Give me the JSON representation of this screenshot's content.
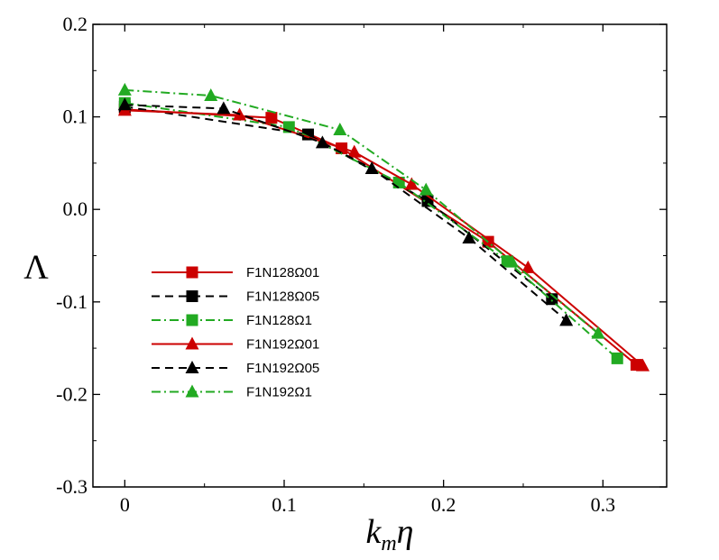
{
  "chart_data": {
    "type": "line",
    "xlabel": {
      "main": "k",
      "sub": "m",
      "tail": "η"
    },
    "ylabel": "Λ",
    "xlim": [
      -0.02,
      0.34
    ],
    "ylim": [
      -0.3,
      0.2
    ],
    "xticks": [
      0,
      0.1,
      0.2,
      0.3
    ],
    "xtick_labels": [
      "0",
      "0.1",
      "0.2",
      "0.3"
    ],
    "yticks": [
      -0.3,
      -0.2,
      -0.1,
      0.0,
      0.1,
      0.2
    ],
    "ytick_labels": [
      "-0.3",
      "-0.2",
      "-0.1",
      "0.0",
      "0.1",
      "0.2"
    ],
    "legend_position": "left-middle",
    "series": [
      {
        "name": "F1N128Ω01",
        "color": "#cc0000",
        "dash": "solid",
        "marker": "square",
        "x": [
          0,
          0.092,
          0.136,
          0.228,
          0.321
        ],
        "y": [
          0.108,
          0.099,
          0.066,
          -0.035,
          -0.168
        ]
      },
      {
        "name": "F1N128Ω05",
        "color": "#000000",
        "dash": "dashed",
        "marker": "square",
        "x": [
          0,
          0.115,
          0.19,
          0.268
        ],
        "y": [
          0.111,
          0.081,
          0.009,
          -0.097
        ]
      },
      {
        "name": "F1N128Ω1",
        "color": "#22aa22",
        "dash": "dashdot",
        "marker": "square",
        "x": [
          0,
          0.103,
          0.172,
          0.24,
          0.309
        ],
        "y": [
          0.115,
          0.089,
          0.029,
          -0.056,
          -0.161
        ]
      },
      {
        "name": "F1N192Ω01",
        "color": "#cc0000",
        "dash": "solid",
        "marker": "triangle",
        "x": [
          0,
          0.072,
          0.144,
          0.18,
          0.253,
          0.325
        ],
        "y": [
          0.107,
          0.102,
          0.062,
          0.027,
          -0.063,
          -0.169
        ]
      },
      {
        "name": "F1N192Ω05",
        "color": "#000000",
        "dash": "dashed",
        "marker": "triangle",
        "x": [
          0,
          0.062,
          0.124,
          0.155,
          0.216,
          0.277
        ],
        "y": [
          0.113,
          0.109,
          0.072,
          0.044,
          -0.031,
          -0.12
        ]
      },
      {
        "name": "F1N192Ω1",
        "color": "#22aa22",
        "dash": "dashdot",
        "marker": "triangle",
        "x": [
          0,
          0.054,
          0.135,
          0.189,
          0.243,
          0.297
        ],
        "y": [
          0.129,
          0.123,
          0.086,
          0.021,
          -0.057,
          -0.134
        ]
      }
    ]
  }
}
